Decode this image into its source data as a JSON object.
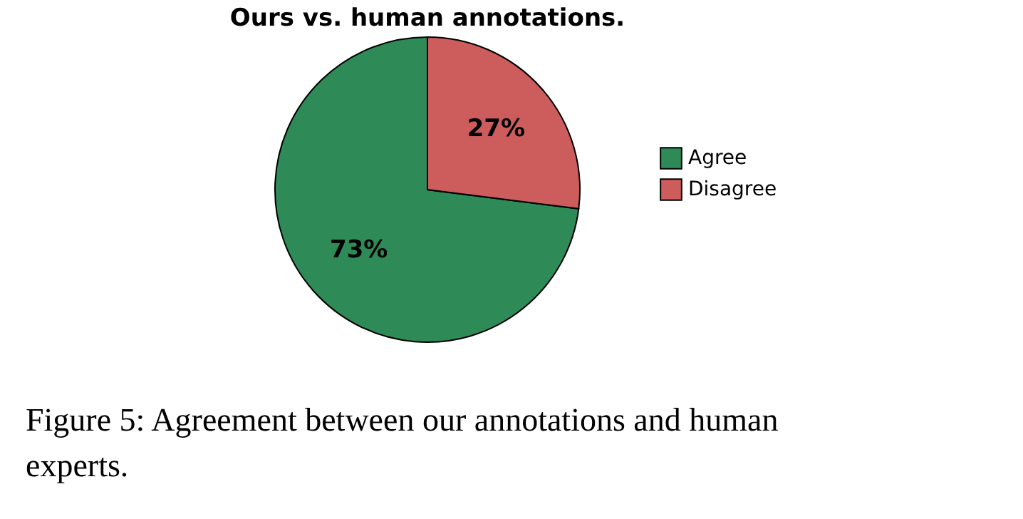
{
  "chart_data": {
    "type": "pie",
    "title": "Ours vs. human annotations.",
    "categories": [
      "Agree",
      "Disagree"
    ],
    "values": [
      73,
      27
    ],
    "colors": [
      "#2e8b57",
      "#cd5c5c"
    ],
    "value_labels": [
      "73%",
      "27%"
    ],
    "legend": "right",
    "annotations": [
      "Figure 5: Agreement between our annotations and human experts."
    ]
  }
}
